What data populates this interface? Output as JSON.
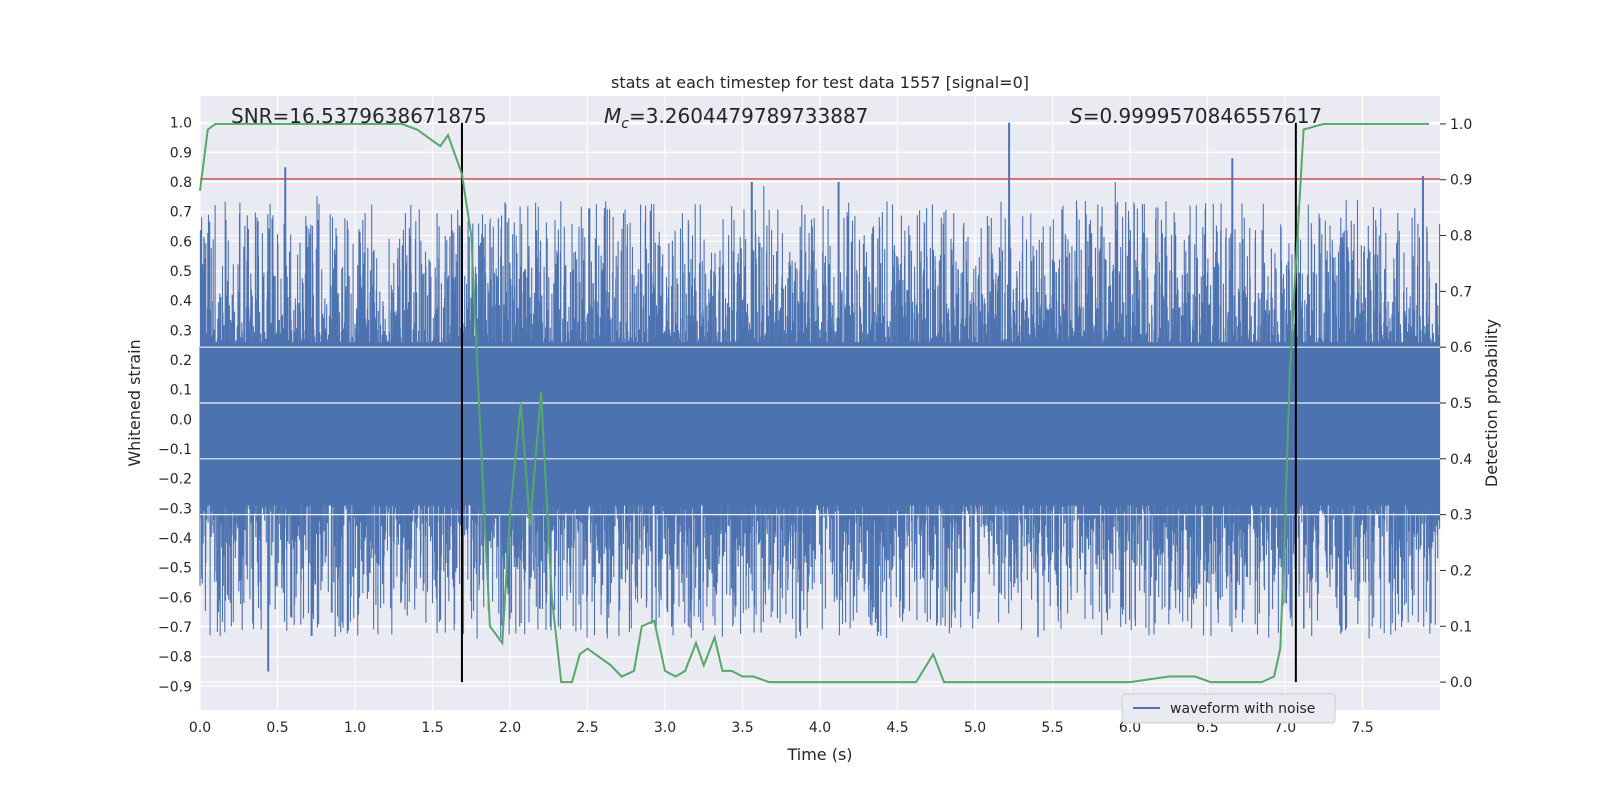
{
  "chart_data": {
    "type": "line",
    "title": "stats at each timestep for test data 1557 [signal=0]",
    "xlabel": "Time (s)",
    "ylabel": "Whitened strain",
    "y2label": "Detection probability",
    "xlim": [
      0.0,
      8.0
    ],
    "ylim": [
      -0.98,
      1.09
    ],
    "y2lim": [
      -0.05,
      1.05
    ],
    "grid": true,
    "legend_position": "bottom-right",
    "x_ticks": [
      "0.0",
      "0.5",
      "1.0",
      "1.5",
      "2.0",
      "2.5",
      "3.0",
      "3.5",
      "4.0",
      "4.5",
      "5.0",
      "5.5",
      "6.0",
      "6.5",
      "7.0",
      "7.5"
    ],
    "y_ticks": [
      "1.0",
      "0.9",
      "0.8",
      "0.7",
      "0.6",
      "0.5",
      "0.4",
      "0.3",
      "0.2",
      "0.1",
      "0.0",
      "-0.1",
      "-0.2",
      "-0.3",
      "-0.4",
      "-0.5",
      "-0.6",
      "-0.7",
      "-0.8",
      "-0.9"
    ],
    "y2_ticks": [
      "1.0",
      "0.9",
      "0.8",
      "0.7",
      "0.6",
      "0.5",
      "0.4",
      "0.3",
      "0.2",
      "0.1",
      "0.0"
    ],
    "annotations": {
      "snr": "SNR=16.5379638671875",
      "mc_symbol": "M",
      "mc_sub": "c",
      "mc_value": "=3.2604479789733887",
      "s_symbol": "S",
      "s_value": "=0.9999570846557617"
    },
    "threshold_y": 0.81,
    "vertical_lines_x": [
      1.69,
      7.07
    ],
    "spike_peaks": [
      {
        "x": 0.55,
        "y": 0.85
      },
      {
        "x": 3.56,
        "y": 0.8
      },
      {
        "x": 4.12,
        "y": 0.8
      },
      {
        "x": 5.22,
        "y": 1.0
      },
      {
        "x": 6.66,
        "y": 0.88
      },
      {
        "x": 7.89,
        "y": 0.82
      },
      {
        "x": 0.44,
        "y": -0.85
      },
      {
        "x": 0.72,
        "y": -0.73
      }
    ],
    "series": [
      {
        "name": "waveform with noise",
        "color": "#4c72b0",
        "kind": "noise",
        "core_range": [
          -0.29,
          0.26
        ],
        "envelope_range": [
          -0.85,
          1.0
        ]
      },
      {
        "color": "#55a868",
        "axis": "right",
        "x": [
          0.0,
          0.05,
          0.1,
          0.2,
          0.4,
          0.6,
          0.8,
          1.0,
          1.2,
          1.3,
          1.4,
          1.45,
          1.5,
          1.55,
          1.6,
          1.69,
          1.75,
          1.8,
          1.87,
          1.95,
          2.0,
          2.07,
          2.13,
          2.2,
          2.27,
          2.33,
          2.4,
          2.45,
          2.5,
          2.65,
          2.72,
          2.8,
          2.85,
          2.93,
          3.0,
          3.07,
          3.13,
          3.2,
          3.25,
          3.32,
          3.37,
          3.43,
          3.5,
          3.57,
          3.67,
          3.78,
          4.0,
          4.25,
          4.5,
          4.62,
          4.73,
          4.8,
          4.9,
          5.0,
          5.12,
          5.25,
          5.5,
          6.0,
          6.25,
          6.35,
          6.42,
          6.52,
          6.65,
          6.85,
          6.93,
          6.97,
          7.0,
          7.03,
          7.07,
          7.12,
          7.25,
          7.5,
          7.75,
          7.93
        ],
        "y": [
          0.88,
          0.99,
          1.0,
          1.0,
          1.0,
          1.0,
          1.0,
          1.0,
          1.0,
          1.0,
          0.99,
          0.98,
          0.97,
          0.96,
          0.98,
          0.91,
          0.8,
          0.5,
          0.1,
          0.07,
          0.3,
          0.5,
          0.28,
          0.52,
          0.15,
          0.0,
          0.0,
          0.05,
          0.06,
          0.03,
          0.01,
          0.02,
          0.1,
          0.11,
          0.02,
          0.01,
          0.02,
          0.07,
          0.03,
          0.08,
          0.02,
          0.02,
          0.01,
          0.01,
          0.0,
          0.0,
          0.0,
          0.0,
          0.0,
          0.0,
          0.05,
          0.0,
          0.0,
          0.0,
          0.0,
          0.0,
          0.0,
          0.0,
          0.01,
          0.01,
          0.01,
          0.0,
          0.0,
          0.0,
          0.01,
          0.06,
          0.28,
          0.55,
          0.75,
          0.99,
          1.0,
          1.0,
          1.0,
          1.0
        ]
      }
    ]
  }
}
